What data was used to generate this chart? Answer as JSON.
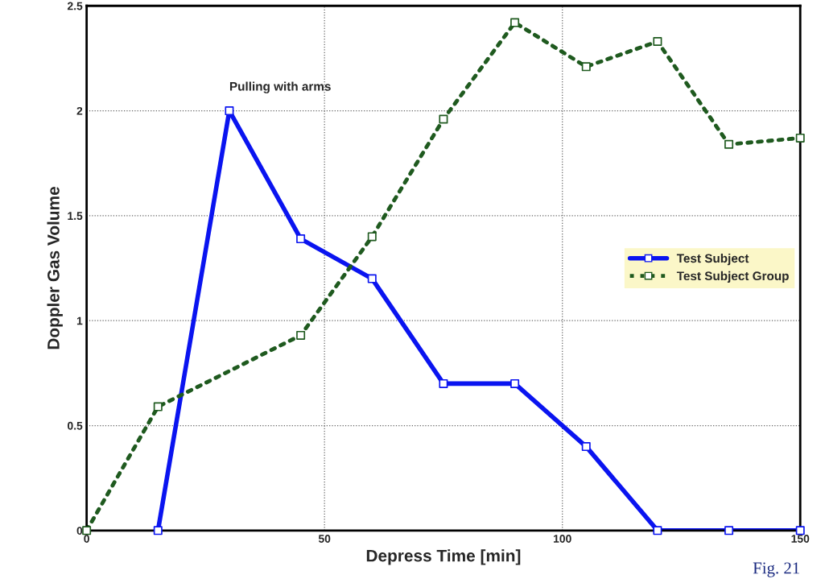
{
  "chart_data": {
    "type": "line",
    "xlabel": "Depress Time [min]",
    "ylabel": "Doppler Gas Volume",
    "xlim": [
      0,
      150
    ],
    "xticks": [
      0,
      50,
      100,
      150
    ],
    "ylim": [
      0,
      2.5
    ],
    "yticks": [
      0,
      0.5,
      1,
      1.5,
      2,
      2.5
    ],
    "grid": true,
    "legend": "center right",
    "marker": "square",
    "series": [
      {
        "name": "Test Subject",
        "color": "#0a14f0",
        "line_style": "solid",
        "x": [
          15,
          30,
          45,
          60,
          75,
          90,
          105,
          120,
          135,
          150
        ],
        "values": [
          0,
          2.0,
          1.39,
          1.2,
          0.7,
          0.7,
          0.4,
          0,
          0,
          0
        ]
      },
      {
        "name": "Test Subject Group",
        "color": "#1f5a1f",
        "line_style": "dotted",
        "x": [
          0,
          15,
          45,
          60,
          75,
          90,
          105,
          120,
          135,
          150
        ],
        "values": [
          0,
          0.59,
          0.93,
          1.4,
          1.96,
          2.42,
          2.21,
          2.33,
          1.84,
          1.87
        ]
      }
    ],
    "annotations": [
      {
        "text": "Pulling with arms",
        "x": 30,
        "y": 2.0
      },
      "Fig. 21"
    ]
  }
}
